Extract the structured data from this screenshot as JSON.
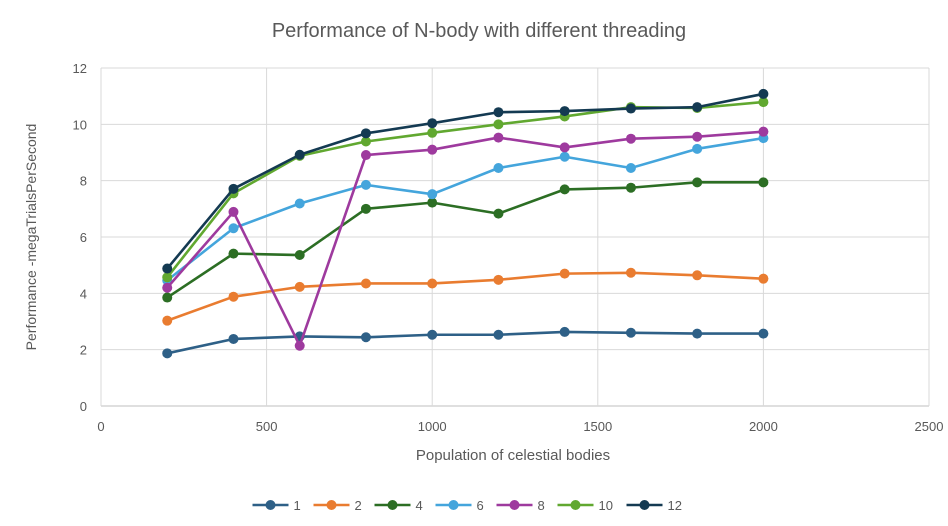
{
  "chart_data": {
    "type": "line",
    "title": "Performance of N-body with different threading",
    "xlabel": "Population of celestial bodies",
    "ylabel": "Performance -megaTrialsPerSecond",
    "xlim": [
      0,
      2500
    ],
    "ylim": [
      0,
      12
    ],
    "xticks": [
      "0",
      "500",
      "1000",
      "1500",
      "2000",
      "2500"
    ],
    "yticks": [
      "0",
      "2",
      "4",
      "6",
      "8",
      "10",
      "12"
    ],
    "grid": true,
    "legend": "bottom",
    "x": [
      200,
      400,
      600,
      800,
      1000,
      1200,
      1400,
      1600,
      1800,
      2000
    ],
    "series": [
      {
        "name": "1",
        "color": "#2e6087",
        "values": [
          1.87,
          2.38,
          2.47,
          2.44,
          2.53,
          2.53,
          2.63,
          2.6,
          2.57,
          2.57
        ]
      },
      {
        "name": "2",
        "color": "#e97c30",
        "values": [
          3.03,
          3.88,
          4.23,
          4.35,
          4.35,
          4.48,
          4.7,
          4.73,
          4.64,
          4.52
        ]
      },
      {
        "name": "4",
        "color": "#2c6e24",
        "values": [
          3.85,
          5.41,
          5.36,
          7.0,
          7.22,
          6.83,
          7.69,
          7.75,
          7.94,
          7.94
        ]
      },
      {
        "name": "6",
        "color": "#44a5dc",
        "values": [
          4.46,
          6.31,
          7.19,
          7.85,
          7.52,
          8.45,
          8.85,
          8.45,
          9.13,
          9.51
        ]
      },
      {
        "name": "8",
        "color": "#9e3a9e",
        "values": [
          4.2,
          6.89,
          2.14,
          8.91,
          9.1,
          9.53,
          9.18,
          9.49,
          9.56,
          9.74
        ]
      },
      {
        "name": "10",
        "color": "#61a830",
        "values": [
          4.57,
          7.55,
          8.88,
          9.39,
          9.7,
          10.0,
          10.28,
          10.61,
          10.58,
          10.79
        ]
      },
      {
        "name": "12",
        "color": "#143a52",
        "values": [
          4.88,
          7.71,
          8.92,
          9.68,
          10.04,
          10.43,
          10.47,
          10.56,
          10.61,
          11.08
        ]
      }
    ]
  }
}
